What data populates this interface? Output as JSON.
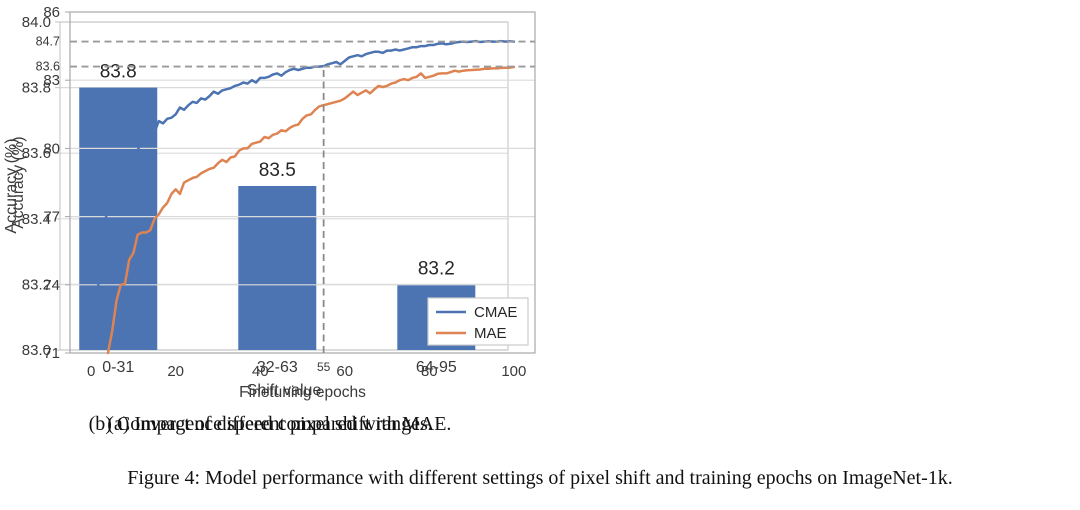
{
  "figure": {
    "subcaption_a": "(a) Impact of different pixel shift ranges.",
    "subcaption_b": "(b) Convergence speed compared with MAE.",
    "caption": "Figure 4: Model performance with different settings of pixel shift and training epochs on ImageNet-1k."
  },
  "colors": {
    "bar_fill": "#4C73B2",
    "cmae": "#4C73B2",
    "mae": "#DE8452",
    "grid": "#DBDBDB",
    "border_a": "#CCCCCC",
    "border_b": "#A8A8A8",
    "dashed": "#9A9A9A",
    "vline": "#8A8A8A",
    "text": "#3A3A3A",
    "legend_border": "#CCCCCC"
  },
  "chart_data": [
    {
      "type": "bar",
      "panel": "a",
      "categories": [
        "0-31",
        "32-63",
        "64-95"
      ],
      "values": [
        83.8,
        83.5,
        83.2
      ],
      "bar_labels": [
        "83.8",
        "83.5",
        "83.2"
      ],
      "xlabel": "Shift value",
      "ylabel": "Accuracy (%)",
      "ylim": [
        83.0,
        84.0
      ],
      "yticks": [
        83.0,
        83.2,
        83.4,
        83.6,
        83.8,
        84.0
      ],
      "ytick_labels": [
        "83.0",
        "83.2",
        "83.4",
        "83.6",
        "83.8",
        "84.0"
      ],
      "grid": true,
      "legend": null
    },
    {
      "type": "line",
      "panel": "b",
      "xlabel": "Finetuning epochs",
      "ylabel": "Accuracy (%)",
      "xlim": [
        -5,
        105
      ],
      "ylim": [
        71,
        86
      ],
      "xticks": [
        0,
        20,
        40,
        60,
        80,
        100
      ],
      "yticks": [
        71,
        74,
        77,
        80,
        83,
        86
      ],
      "grid": true,
      "legend": {
        "position": "lower right",
        "entries": [
          "CMAE",
          "MAE"
        ]
      },
      "annotations": {
        "hlines": [
          {
            "y": 84.7,
            "label": "84.7"
          },
          {
            "y": 83.6,
            "label": "83.6"
          }
        ],
        "vline": {
          "x": 55,
          "label": "55",
          "top": 83.6
        }
      },
      "series": [
        {
          "name": "CMAE",
          "color_key": "cmae",
          "points": [
            [
              1,
              72.3
            ],
            [
              2,
              74.8
            ],
            [
              3,
              76.5
            ],
            [
              4,
              77.4
            ],
            [
              5,
              77.9
            ],
            [
              6,
              78.2
            ],
            [
              7,
              78.7
            ],
            [
              8,
              79.0
            ],
            [
              9,
              79.4
            ],
            [
              10,
              79.7
            ],
            [
              11,
              79.9
            ],
            [
              12,
              80.4
            ],
            [
              13,
              80.3
            ],
            [
              14,
              80.6
            ],
            [
              15,
              80.7
            ],
            [
              16,
              81.2
            ],
            [
              17,
              81.1
            ],
            [
              18,
              81.3
            ],
            [
              19,
              81.35
            ],
            [
              20,
              81.5
            ],
            [
              21,
              81.8
            ],
            [
              22,
              81.7
            ],
            [
              23,
              81.9
            ],
            [
              24,
              82.05
            ],
            [
              25,
              82.0
            ],
            [
              26,
              82.2
            ],
            [
              27,
              82.15
            ],
            [
              28,
              82.3
            ],
            [
              29,
              82.5
            ],
            [
              30,
              82.4
            ],
            [
              31,
              82.55
            ],
            [
              32,
              82.6
            ],
            [
              33,
              82.65
            ],
            [
              34,
              82.75
            ],
            [
              35,
              82.8
            ],
            [
              36,
              82.9
            ],
            [
              37,
              82.85
            ],
            [
              38,
              83.0
            ],
            [
              39,
              82.9
            ],
            [
              40,
              83.1
            ],
            [
              41,
              83.1
            ],
            [
              42,
              83.15
            ],
            [
              43,
              83.25
            ],
            [
              44,
              83.3
            ],
            [
              45,
              83.2
            ],
            [
              46,
              83.35
            ],
            [
              47,
              83.45
            ],
            [
              48,
              83.5
            ],
            [
              49,
              83.45
            ],
            [
              50,
              83.5
            ],
            [
              51,
              83.55
            ],
            [
              52,
              83.55
            ],
            [
              53,
              83.6
            ],
            [
              54,
              83.6
            ],
            [
              55,
              83.62
            ],
            [
              56,
              83.7
            ],
            [
              57,
              83.75
            ],
            [
              58,
              83.8
            ],
            [
              59,
              83.7
            ],
            [
              60,
              83.85
            ],
            [
              61,
              84.0
            ],
            [
              62,
              84.05
            ],
            [
              63,
              84.1
            ],
            [
              64,
              84.05
            ],
            [
              65,
              84.15
            ],
            [
              66,
              84.2
            ],
            [
              67,
              84.25
            ],
            [
              68,
              84.25
            ],
            [
              69,
              84.2
            ],
            [
              70,
              84.3
            ],
            [
              71,
              84.3
            ],
            [
              72,
              84.35
            ],
            [
              73,
              84.3
            ],
            [
              74,
              84.35
            ],
            [
              75,
              84.4
            ],
            [
              76,
              84.45
            ],
            [
              77,
              84.45
            ],
            [
              78,
              84.5
            ],
            [
              79,
              84.5
            ],
            [
              80,
              84.55
            ],
            [
              81,
              84.55
            ],
            [
              82,
              84.6
            ],
            [
              83,
              84.62
            ],
            [
              84,
              84.58
            ],
            [
              85,
              84.6
            ],
            [
              86,
              84.65
            ],
            [
              87,
              84.68
            ],
            [
              88,
              84.7
            ],
            [
              89,
              84.68
            ],
            [
              90,
              84.7
            ],
            [
              91,
              84.72
            ],
            [
              92,
              84.68
            ],
            [
              93,
              84.7
            ],
            [
              94,
              84.71
            ],
            [
              95,
              84.7
            ],
            [
              96,
              84.7
            ],
            [
              97,
              84.72
            ],
            [
              98,
              84.7
            ],
            [
              99,
              84.71
            ],
            [
              100,
              84.7
            ]
          ]
        },
        {
          "name": "MAE",
          "color_key": "mae",
          "points": [
            [
              4,
              71.0
            ],
            [
              5,
              72.0
            ],
            [
              6,
              73.3
            ],
            [
              7,
              74.0
            ],
            [
              8,
              74.05
            ],
            [
              9,
              75.1
            ],
            [
              10,
              75.4
            ],
            [
              11,
              76.2
            ],
            [
              12,
              76.3
            ],
            [
              13,
              76.3
            ],
            [
              14,
              76.4
            ],
            [
              15,
              76.9
            ],
            [
              16,
              77.1
            ],
            [
              17,
              77.4
            ],
            [
              18,
              77.6
            ],
            [
              19,
              78.0
            ],
            [
              20,
              78.2
            ],
            [
              21,
              78.0
            ],
            [
              22,
              78.5
            ],
            [
              23,
              78.6
            ],
            [
              24,
              78.7
            ],
            [
              25,
              78.75
            ],
            [
              26,
              78.9
            ],
            [
              27,
              79.0
            ],
            [
              28,
              79.1
            ],
            [
              29,
              79.15
            ],
            [
              30,
              79.35
            ],
            [
              31,
              79.5
            ],
            [
              32,
              79.4
            ],
            [
              33,
              79.6
            ],
            [
              34,
              79.65
            ],
            [
              35,
              79.9
            ],
            [
              36,
              80.0
            ],
            [
              37,
              80.0
            ],
            [
              38,
              80.2
            ],
            [
              39,
              80.25
            ],
            [
              40,
              80.3
            ],
            [
              41,
              80.5
            ],
            [
              42,
              80.45
            ],
            [
              43,
              80.6
            ],
            [
              44,
              80.65
            ],
            [
              45,
              80.8
            ],
            [
              46,
              80.75
            ],
            [
              47,
              80.9
            ],
            [
              48,
              81.0
            ],
            [
              49,
              81.05
            ],
            [
              50,
              81.3
            ],
            [
              51,
              81.45
            ],
            [
              52,
              81.5
            ],
            [
              53,
              81.7
            ],
            [
              54,
              81.85
            ],
            [
              55,
              81.9
            ],
            [
              56,
              81.95
            ],
            [
              57,
              82.0
            ],
            [
              58,
              82.05
            ],
            [
              59,
              82.1
            ],
            [
              60,
              82.2
            ],
            [
              61,
              82.35
            ],
            [
              62,
              82.5
            ],
            [
              63,
              82.35
            ],
            [
              64,
              82.45
            ],
            [
              65,
              82.55
            ],
            [
              66,
              82.42
            ],
            [
              67,
              82.6
            ],
            [
              68,
              82.75
            ],
            [
              69,
              82.7
            ],
            [
              70,
              82.75
            ],
            [
              71,
              82.85
            ],
            [
              72,
              82.9
            ],
            [
              73,
              83.0
            ],
            [
              74,
              83.05
            ],
            [
              75,
              83.0
            ],
            [
              76,
              83.1
            ],
            [
              77,
              83.15
            ],
            [
              78,
              83.3
            ],
            [
              79,
              83.1
            ],
            [
              80,
              83.15
            ],
            [
              81,
              83.2
            ],
            [
              82,
              83.28
            ],
            [
              83,
              83.3
            ],
            [
              84,
              83.3
            ],
            [
              85,
              83.35
            ],
            [
              86,
              83.42
            ],
            [
              87,
              83.38
            ],
            [
              88,
              83.42
            ],
            [
              89,
              83.44
            ],
            [
              90,
              83.45
            ],
            [
              91,
              83.46
            ],
            [
              92,
              83.47
            ],
            [
              93,
              83.5
            ],
            [
              94,
              83.5
            ],
            [
              95,
              83.52
            ],
            [
              96,
              83.52
            ],
            [
              97,
              83.54
            ],
            [
              98,
              83.55
            ],
            [
              99,
              83.55
            ],
            [
              100,
              83.58
            ]
          ]
        }
      ]
    }
  ]
}
